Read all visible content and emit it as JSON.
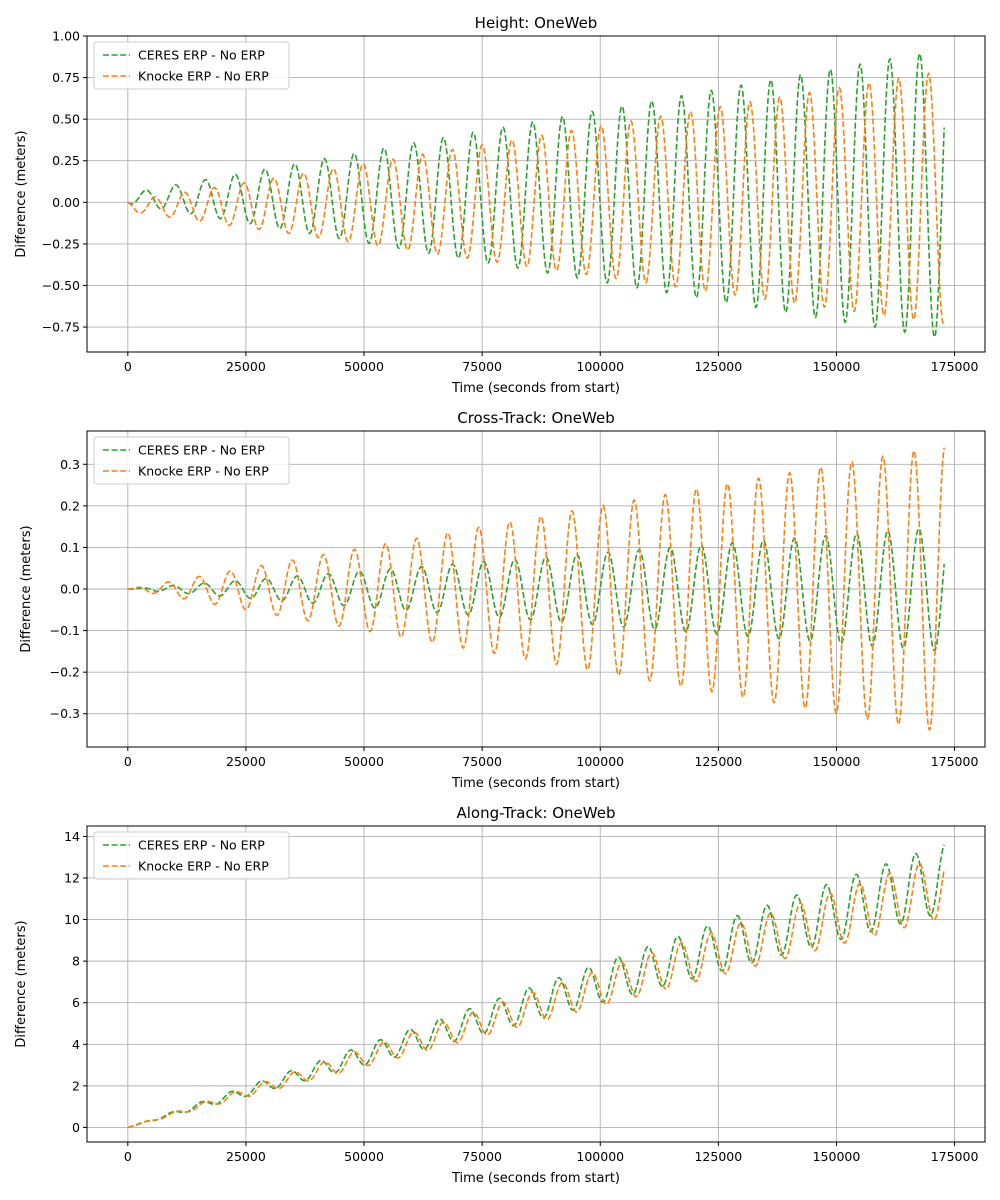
{
  "colors": {
    "ceres": "#2ca02c",
    "knocke": "#ff7f0e",
    "grid": "#b0b0b0",
    "axis": "#000000"
  },
  "chart_data": [
    {
      "type": "line",
      "title": "Height: OneWeb",
      "xlabel": "Time (seconds from start)",
      "ylabel": "Difference (meters)",
      "xlim": [
        -8640,
        181440
      ],
      "ylim": [
        -0.9,
        1.0
      ],
      "xticks": [
        0,
        25000,
        50000,
        75000,
        100000,
        125000,
        150000,
        175000
      ],
      "xtick_labels": [
        "0",
        "25000",
        "50000",
        "75000",
        "100000",
        "125000",
        "150000",
        "175000"
      ],
      "yticks": [
        -0.75,
        -0.5,
        -0.25,
        0.0,
        0.25,
        0.5,
        0.75,
        1.0
      ],
      "ytick_labels": [
        "−0.75",
        "−0.50",
        "−0.25",
        "0.00",
        "0.25",
        "0.50",
        "0.75",
        "1.00"
      ],
      "grid": true,
      "legend_position": "top-left",
      "orbital_period_s": 6300,
      "series": [
        {
          "name": "CERES ERP - No ERP",
          "color_key": "ceres",
          "style": "dashed",
          "shape": "oscillation",
          "x_end": 172800,
          "trend_start": 0.0,
          "trend_end": 0.05,
          "amp_start": 0.03,
          "amp_end": 0.87,
          "end_phase": 0.42,
          "end_value": 0.45
        },
        {
          "name": "Knocke ERP - No ERP",
          "color_key": "knocke",
          "style": "dashed",
          "shape": "oscillation",
          "x_end": 172800,
          "trend_start": 0.0,
          "trend_end": 0.03,
          "amp_start": 0.03,
          "amp_end": 0.76,
          "end_phase": 0.72,
          "end_value": -0.72
        }
      ]
    },
    {
      "type": "line",
      "title": "Cross-Track: OneWeb",
      "xlabel": "Time (seconds from start)",
      "ylabel": "Difference (meters)",
      "xlim": [
        -8640,
        181440
      ],
      "ylim": [
        -0.38,
        0.38
      ],
      "xticks": [
        0,
        25000,
        50000,
        75000,
        100000,
        125000,
        150000,
        175000
      ],
      "xtick_labels": [
        "0",
        "25000",
        "50000",
        "75000",
        "100000",
        "125000",
        "150000",
        "175000"
      ],
      "yticks": [
        -0.3,
        -0.2,
        -0.1,
        0.0,
        0.1,
        0.2,
        0.3
      ],
      "ytick_labels": [
        "−0.3",
        "−0.2",
        "−0.1",
        "0.0",
        "0.1",
        "0.2",
        "0.3"
      ],
      "grid": true,
      "legend_position": "top-left",
      "orbital_period_s": 6580,
      "series": [
        {
          "name": "CERES ERP - No ERP",
          "color_key": "ceres",
          "style": "dashed",
          "shape": "oscillation",
          "x_end": 172800,
          "trend_start": 0.0,
          "trend_end": 0.0,
          "amp_start": 0.0,
          "amp_end": 0.15,
          "end_phase": 0.05,
          "end_value": 0.06
        },
        {
          "name": "Knocke ERP - No ERP",
          "color_key": "knocke",
          "style": "dashed",
          "shape": "oscillation",
          "x_end": 172800,
          "trend_start": 0.0,
          "trend_end": 0.0,
          "amp_start": 0.0,
          "amp_end": 0.345,
          "end_phase": 0.25,
          "end_value": 0.34
        }
      ]
    },
    {
      "type": "line",
      "title": "Along-Track: OneWeb",
      "xlabel": "Time (seconds from start)",
      "ylabel": "Difference (meters)",
      "xlim": [
        -8640,
        181440
      ],
      "ylim": [
        -0.7,
        14.5
      ],
      "xticks": [
        0,
        25000,
        50000,
        75000,
        100000,
        125000,
        150000,
        175000
      ],
      "xtick_labels": [
        "0",
        "25000",
        "50000",
        "75000",
        "100000",
        "125000",
        "150000",
        "175000"
      ],
      "yticks": [
        0,
        2,
        4,
        6,
        8,
        10,
        12,
        14
      ],
      "ytick_labels": [
        "0",
        "2",
        "4",
        "6",
        "8",
        "10",
        "12",
        "14"
      ],
      "grid": true,
      "legend_position": "top-left",
      "orbital_period_s": 6300,
      "series": [
        {
          "name": "CERES ERP - No ERP",
          "color_key": "ceres",
          "style": "dashed",
          "shape": "oscillation",
          "x_end": 172800,
          "trend_start": 0.0,
          "trend_end": 12.0,
          "amp_start": 0.0,
          "amp_end": 1.65,
          "end_phase": 0.2,
          "end_value": 13.6
        },
        {
          "name": "Knocke ERP - No ERP",
          "color_key": "knocke",
          "style": "dashed",
          "shape": "oscillation",
          "x_end": 172800,
          "trend_start": 0.0,
          "trend_end": 11.6,
          "amp_start": 0.0,
          "amp_end": 1.5,
          "end_phase": 0.15,
          "end_value": 12.4
        }
      ]
    }
  ]
}
